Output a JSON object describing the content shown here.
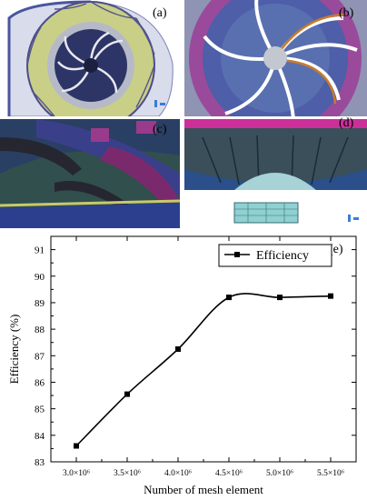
{
  "panels": [
    {
      "id": "a",
      "label": "(a)"
    },
    {
      "id": "b",
      "label": "(b)"
    },
    {
      "id": "c",
      "label": "(c)"
    },
    {
      "id": "d",
      "label": "(d)"
    }
  ],
  "chart_panel_label": "(e)",
  "chart_data": {
    "type": "line",
    "xlabel": "Number of mesh element",
    "ylabel": "Efficiency (%)",
    "x_tick_labels": [
      "3.0×10⁶",
      "3.5×10⁶",
      "4.0×10⁶",
      "4.5×10⁶",
      "5.0×10⁶",
      "5.5×10⁶"
    ],
    "x": [
      3000000,
      3500000,
      4000000,
      4500000,
      5000000,
      5500000
    ],
    "y_ticks": [
      83,
      84,
      85,
      86,
      87,
      88,
      89,
      90,
      91
    ],
    "xlim": [
      2750000,
      5750000
    ],
    "ylim": [
      83,
      91.5
    ],
    "series": [
      {
        "name": "Efficiency",
        "values": [
          83.6,
          85.55,
          87.25,
          89.2,
          89.2,
          89.25
        ],
        "marker": "square",
        "color": "#000000"
      }
    ],
    "legend_position": "top-right",
    "grid": false
  }
}
